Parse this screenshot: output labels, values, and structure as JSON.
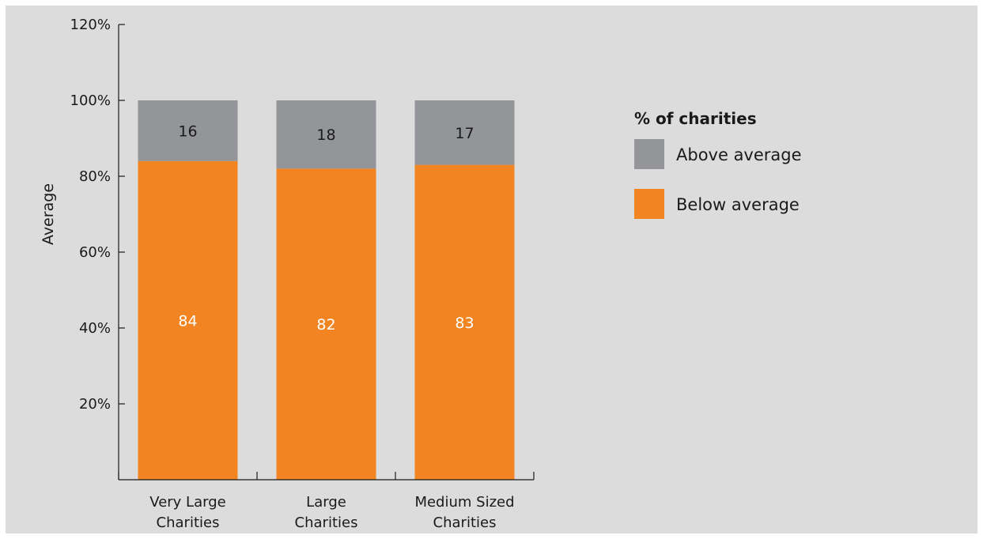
{
  "chart_data": {
    "type": "bar",
    "stacked": true,
    "categories": [
      [
        "Very Large",
        "Charities"
      ],
      [
        "Large",
        "Charities"
      ],
      [
        "Medium Sized",
        "Charities"
      ]
    ],
    "series": [
      {
        "name": "Below average",
        "values": [
          84,
          82,
          83
        ],
        "color": "#f28421",
        "label_color": "#ffffff"
      },
      {
        "name": "Above average",
        "values": [
          16,
          18,
          17
        ],
        "color": "#939598",
        "label_color": "#1a1a1a"
      }
    ],
    "ylabel": "Average",
    "ylim": [
      0,
      120
    ],
    "yticks": [
      "20%",
      "40%",
      "60%",
      "80%",
      "100%",
      "120%"
    ],
    "ytick_values": [
      20,
      40,
      60,
      80,
      100,
      120
    ],
    "legend": {
      "title": "% of charities",
      "placement": "right",
      "items": [
        {
          "label": "Above average",
          "color": "#939598"
        },
        {
          "label": "Below average",
          "color": "#f28421"
        }
      ]
    },
    "grid": false
  }
}
